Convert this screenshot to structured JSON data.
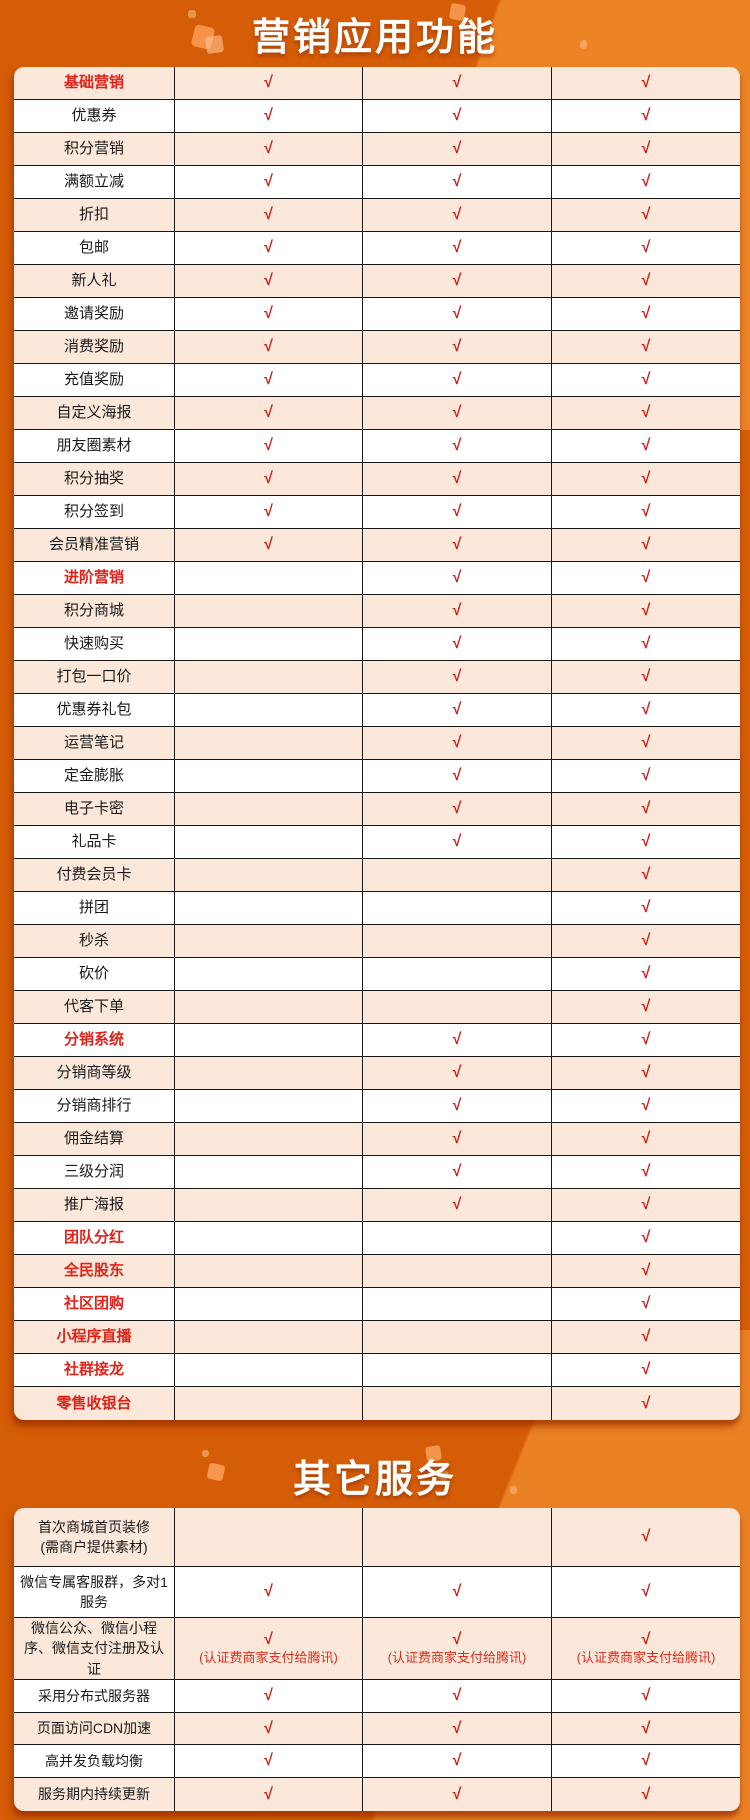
{
  "banners": {
    "marketing": "营销应用功能",
    "other": "其它服务"
  },
  "check_mark": "√",
  "colors": {
    "background_orange": "#d65d07",
    "stripe_orange": "#f07c1e",
    "row_peach": "#fbe8da",
    "row_white": "#ffffff",
    "accent_red": "#e0231a",
    "check_red": "#c9211a",
    "text_black": "#191919"
  },
  "marketing_table": {
    "rows": [
      {
        "label": "基础营销",
        "section": true,
        "checks": [
          "√",
          "√",
          "√"
        ]
      },
      {
        "label": "优惠券",
        "section": false,
        "checks": [
          "√",
          "√",
          "√"
        ]
      },
      {
        "label": "积分营销",
        "section": false,
        "checks": [
          "√",
          "√",
          "√"
        ]
      },
      {
        "label": "满额立减",
        "section": false,
        "checks": [
          "√",
          "√",
          "√"
        ]
      },
      {
        "label": "折扣",
        "section": false,
        "checks": [
          "√",
          "√",
          "√"
        ]
      },
      {
        "label": "包邮",
        "section": false,
        "checks": [
          "√",
          "√",
          "√"
        ]
      },
      {
        "label": "新人礼",
        "section": false,
        "checks": [
          "√",
          "√",
          "√"
        ]
      },
      {
        "label": "邀请奖励",
        "section": false,
        "checks": [
          "√",
          "√",
          "√"
        ]
      },
      {
        "label": "消费奖励",
        "section": false,
        "checks": [
          "√",
          "√",
          "√"
        ]
      },
      {
        "label": "充值奖励",
        "section": false,
        "checks": [
          "√",
          "√",
          "√"
        ]
      },
      {
        "label": "自定义海报",
        "section": false,
        "checks": [
          "√",
          "√",
          "√"
        ]
      },
      {
        "label": "朋友圈素材",
        "section": false,
        "checks": [
          "√",
          "√",
          "√"
        ]
      },
      {
        "label": "积分抽奖",
        "section": false,
        "checks": [
          "√",
          "√",
          "√"
        ]
      },
      {
        "label": "积分签到",
        "section": false,
        "checks": [
          "√",
          "√",
          "√"
        ]
      },
      {
        "label": "会员精准营销",
        "section": false,
        "checks": [
          "√",
          "√",
          "√"
        ]
      },
      {
        "label": "进阶营销",
        "section": true,
        "checks": [
          "",
          "√",
          "√"
        ]
      },
      {
        "label": "积分商城",
        "section": false,
        "checks": [
          "",
          "√",
          "√"
        ]
      },
      {
        "label": "快速购买",
        "section": false,
        "checks": [
          "",
          "√",
          "√"
        ]
      },
      {
        "label": "打包一口价",
        "section": false,
        "checks": [
          "",
          "√",
          "√"
        ]
      },
      {
        "label": "优惠券礼包",
        "section": false,
        "checks": [
          "",
          "√",
          "√"
        ]
      },
      {
        "label": "运营笔记",
        "section": false,
        "checks": [
          "",
          "√",
          "√"
        ]
      },
      {
        "label": "定金膨胀",
        "section": false,
        "checks": [
          "",
          "√",
          "√"
        ]
      },
      {
        "label": "电子卡密",
        "section": false,
        "checks": [
          "",
          "√",
          "√"
        ]
      },
      {
        "label": "礼品卡",
        "section": false,
        "checks": [
          "",
          "√",
          "√"
        ]
      },
      {
        "label": "付费会员卡",
        "section": false,
        "checks": [
          "",
          "",
          "√"
        ]
      },
      {
        "label": "拼团",
        "section": false,
        "checks": [
          "",
          "",
          "√"
        ]
      },
      {
        "label": "秒杀",
        "section": false,
        "checks": [
          "",
          "",
          "√"
        ]
      },
      {
        "label": "砍价",
        "section": false,
        "checks": [
          "",
          "",
          "√"
        ]
      },
      {
        "label": "代客下单",
        "section": false,
        "checks": [
          "",
          "",
          "√"
        ]
      },
      {
        "label": "分销系统",
        "section": true,
        "checks": [
          "",
          "√",
          "√"
        ]
      },
      {
        "label": "分销商等级",
        "section": false,
        "checks": [
          "",
          "√",
          "√"
        ]
      },
      {
        "label": "分销商排行",
        "section": false,
        "checks": [
          "",
          "√",
          "√"
        ]
      },
      {
        "label": "佣金结算",
        "section": false,
        "checks": [
          "",
          "√",
          "√"
        ]
      },
      {
        "label": "三级分润",
        "section": false,
        "checks": [
          "",
          "√",
          "√"
        ]
      },
      {
        "label": "推广海报",
        "section": false,
        "checks": [
          "",
          "√",
          "√"
        ]
      },
      {
        "label": "团队分红",
        "section": true,
        "checks": [
          "",
          "",
          "√"
        ]
      },
      {
        "label": "全民股东",
        "section": true,
        "checks": [
          "",
          "",
          "√"
        ]
      },
      {
        "label": "社区团购",
        "section": true,
        "checks": [
          "",
          "",
          "√"
        ]
      },
      {
        "label": "小程序直播",
        "section": true,
        "checks": [
          "",
          "",
          "√"
        ]
      },
      {
        "label": "社群接龙",
        "section": true,
        "checks": [
          "",
          "",
          "√"
        ]
      },
      {
        "label": "零售收银台",
        "section": true,
        "checks": [
          "",
          "",
          "√"
        ]
      }
    ]
  },
  "other_table": {
    "rows": [
      {
        "label": "首次商城首页装修",
        "label2": "(需商户提供素材)",
        "section": false,
        "checks": [
          "",
          "",
          "√"
        ]
      },
      {
        "label": "微信专属客服群，多对1服务",
        "section": false,
        "checks": [
          "√",
          "√",
          "√"
        ]
      },
      {
        "label": "微信公众、微信小程序、微信支付注册及认证",
        "section": false,
        "checks": [
          "√",
          "√",
          "√"
        ],
        "note": "(认证费商家支付给腾讯)"
      },
      {
        "label": "采用分布式服务器",
        "section": false,
        "checks": [
          "√",
          "√",
          "√"
        ]
      },
      {
        "label": "页面访问CDN加速",
        "section": false,
        "checks": [
          "√",
          "√",
          "√"
        ]
      },
      {
        "label": "高并发负载均衡",
        "section": false,
        "checks": [
          "√",
          "√",
          "√"
        ]
      },
      {
        "label": "服务期内持续更新",
        "section": false,
        "checks": [
          "√",
          "√",
          "√"
        ]
      }
    ]
  }
}
